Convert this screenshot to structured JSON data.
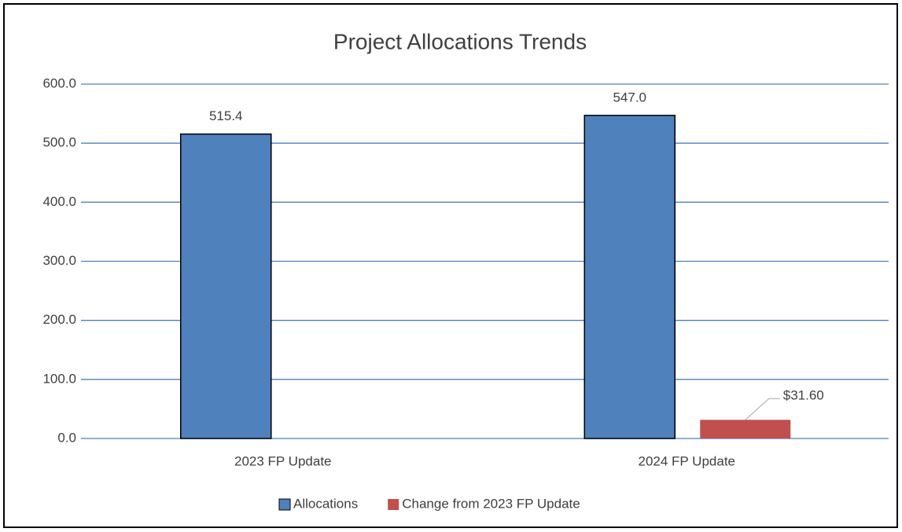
{
  "chart_data": {
    "type": "bar",
    "title": "Project Allocations Trends",
    "categories": [
      "2023 FP Update",
      "2024 FP Update"
    ],
    "series": [
      {
        "name": "Allocations",
        "color": "#4f81bd",
        "values": [
          515.4,
          547.0
        ],
        "value_labels": [
          "515.4",
          "547.0"
        ]
      },
      {
        "name": "Change from 2023 FP Update",
        "color": "#c0504d",
        "values": [
          null,
          31.6
        ],
        "value_labels": [
          null,
          "$31.60"
        ]
      }
    ],
    "ylim": [
      0,
      600
    ],
    "yticks": [
      {
        "value": 0,
        "label": "0.0"
      },
      {
        "value": 100,
        "label": "100.0"
      },
      {
        "value": 200,
        "label": "200.0"
      },
      {
        "value": 300,
        "label": "300.0"
      },
      {
        "value": 400,
        "label": "400.0"
      },
      {
        "value": 500,
        "label": "500.0"
      },
      {
        "value": 600,
        "label": "600.0"
      }
    ],
    "grid": true,
    "legend": "bottom"
  }
}
